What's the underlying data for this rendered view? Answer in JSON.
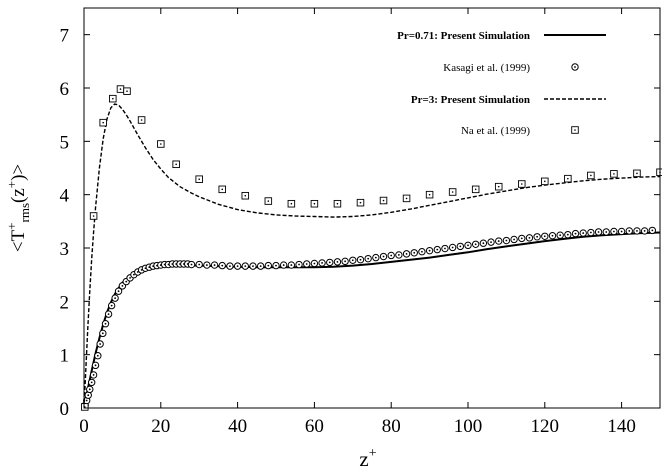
{
  "chart_data": {
    "type": "line",
    "xlabel": {
      "base": "z",
      "sup": "+"
    },
    "ylabel": {
      "pre": "<T",
      "sup1": "+",
      "sub1": "rms",
      "mid": "(z",
      "sup2": "+",
      "post": ")>"
    },
    "xlim": [
      0,
      150
    ],
    "ylim": [
      0,
      7.5
    ],
    "xticks": [
      0,
      20,
      40,
      60,
      80,
      100,
      120,
      140
    ],
    "yticks": [
      0,
      1,
      2,
      3,
      4,
      5,
      6,
      7
    ],
    "grid": false,
    "legend_position": "top-right",
    "series": [
      {
        "name": "Pr=0.71: Present Simulation",
        "kind": "line",
        "style": "solid",
        "x": [
          0,
          0.5,
          1,
          1.5,
          2,
          3,
          4,
          5,
          6,
          7,
          8,
          9,
          10,
          12,
          14,
          16,
          18,
          20,
          22,
          25,
          30,
          35,
          40,
          45,
          50,
          55,
          60,
          65,
          70,
          75,
          80,
          85,
          90,
          95,
          100,
          105,
          110,
          115,
          120,
          125,
          130,
          135,
          140,
          145,
          150
        ],
        "y": [
          0,
          0.18,
          0.36,
          0.53,
          0.7,
          1.02,
          1.31,
          1.57,
          1.79,
          1.98,
          2.13,
          2.25,
          2.35,
          2.48,
          2.57,
          2.62,
          2.65,
          2.67,
          2.68,
          2.68,
          2.67,
          2.66,
          2.65,
          2.64,
          2.64,
          2.64,
          2.64,
          2.65,
          2.67,
          2.7,
          2.74,
          2.78,
          2.82,
          2.87,
          2.92,
          2.98,
          3.03,
          3.08,
          3.13,
          3.17,
          3.21,
          3.24,
          3.26,
          3.28,
          3.29
        ]
      },
      {
        "name": "Kasagi et al. (1999)",
        "kind": "marker",
        "marker": "circle-dot",
        "x": [
          0.3,
          0.7,
          1.1,
          1.5,
          2,
          2.5,
          3,
          3.6,
          4.2,
          4.9,
          5.6,
          6.4,
          7.2,
          8.1,
          9,
          10,
          11,
          12,
          13,
          14,
          15,
          16,
          17,
          18,
          19,
          20,
          21,
          22,
          23,
          24,
          25,
          26,
          27,
          28,
          30,
          32,
          34,
          36,
          38,
          40,
          42,
          44,
          46,
          48,
          50,
          52,
          54,
          56,
          58,
          60,
          62,
          64,
          66,
          68,
          70,
          72,
          74,
          76,
          78,
          80,
          82,
          84,
          86,
          88,
          90,
          92,
          94,
          96,
          98,
          100,
          102,
          104,
          106,
          108,
          110,
          112,
          114,
          116,
          118,
          120,
          122,
          124,
          126,
          128,
          130,
          132,
          134,
          136,
          138,
          140,
          142,
          144,
          146,
          148
        ],
        "y": [
          0.05,
          0.14,
          0.24,
          0.35,
          0.48,
          0.62,
          0.8,
          0.98,
          1.2,
          1.4,
          1.58,
          1.76,
          1.92,
          2.06,
          2.19,
          2.29,
          2.37,
          2.44,
          2.5,
          2.55,
          2.59,
          2.62,
          2.64,
          2.66,
          2.67,
          2.68,
          2.69,
          2.69,
          2.7,
          2.7,
          2.7,
          2.7,
          2.7,
          2.69,
          2.69,
          2.68,
          2.68,
          2.67,
          2.66,
          2.66,
          2.66,
          2.66,
          2.66,
          2.67,
          2.67,
          2.68,
          2.68,
          2.69,
          2.7,
          2.71,
          2.72,
          2.73,
          2.74,
          2.75,
          2.77,
          2.78,
          2.8,
          2.82,
          2.84,
          2.86,
          2.87,
          2.89,
          2.91,
          2.93,
          2.95,
          2.97,
          2.99,
          3.01,
          3.03,
          3.05,
          3.07,
          3.09,
          3.11,
          3.13,
          3.14,
          3.16,
          3.18,
          3.19,
          3.21,
          3.22,
          3.23,
          3.24,
          3.25,
          3.27,
          3.28,
          3.29,
          3.3,
          3.3,
          3.31,
          3.31,
          3.32,
          3.32,
          3.32,
          3.33
        ]
      },
      {
        "name": "Pr=3: Present Simulation",
        "kind": "line",
        "style": "dashed",
        "x": [
          0,
          0.5,
          1,
          1.5,
          2,
          2.5,
          3,
          4,
          5,
          6,
          7,
          8,
          9,
          10,
          11,
          12,
          14,
          16,
          18,
          20,
          22,
          25,
          28,
          30,
          35,
          40,
          45,
          50,
          55,
          60,
          65,
          70,
          75,
          80,
          85,
          90,
          95,
          100,
          105,
          110,
          115,
          120,
          125,
          130,
          135,
          140,
          145,
          150
        ],
        "y": [
          0,
          0.75,
          1.5,
          2.2,
          2.8,
          3.3,
          3.75,
          4.5,
          5.05,
          5.42,
          5.63,
          5.7,
          5.68,
          5.6,
          5.5,
          5.38,
          5.12,
          4.88,
          4.66,
          4.48,
          4.32,
          4.15,
          4.03,
          3.96,
          3.82,
          3.72,
          3.66,
          3.62,
          3.6,
          3.59,
          3.58,
          3.59,
          3.62,
          3.67,
          3.73,
          3.8,
          3.87,
          3.94,
          4.01,
          4.07,
          4.13,
          4.18,
          4.22,
          4.26,
          4.29,
          4.31,
          4.33,
          4.34
        ]
      },
      {
        "name": "Na et al. (1999)",
        "kind": "marker",
        "marker": "square-dot",
        "x": [
          0.2,
          2.5,
          5,
          7.5,
          9.5,
          11.2,
          15,
          20,
          24,
          30,
          36,
          42,
          48,
          54,
          60,
          66,
          72,
          78,
          84,
          90,
          96,
          102,
          108,
          114,
          120,
          126,
          132,
          138,
          144,
          150
        ],
        "y": [
          0.02,
          3.6,
          5.35,
          5.8,
          5.98,
          5.94,
          5.4,
          4.95,
          4.57,
          4.29,
          4.1,
          3.98,
          3.88,
          3.83,
          3.83,
          3.83,
          3.85,
          3.89,
          3.93,
          4.0,
          4.05,
          4.1,
          4.15,
          4.2,
          4.25,
          4.3,
          4.36,
          4.39,
          4.4,
          4.42
        ]
      }
    ]
  }
}
